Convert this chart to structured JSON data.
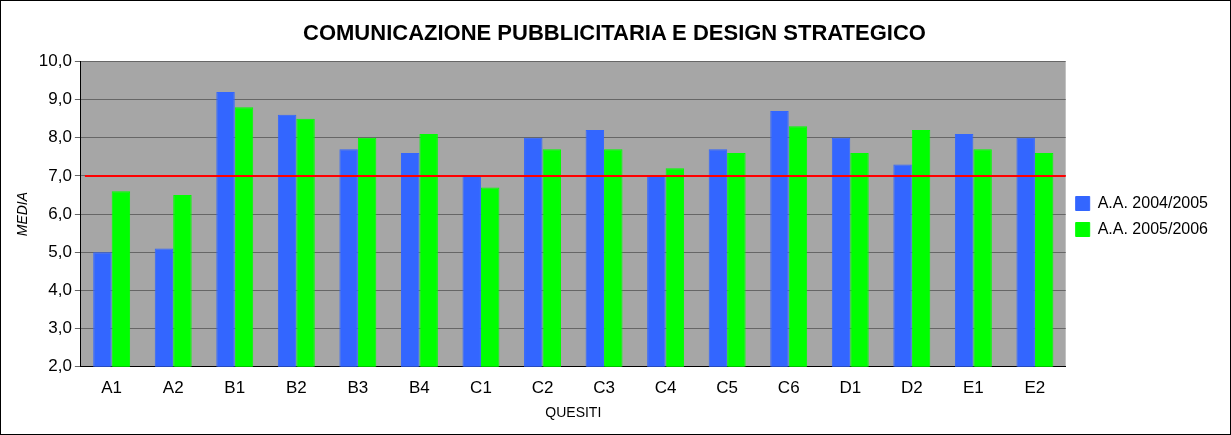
{
  "chart_data": {
    "type": "bar",
    "title": "COMUNICAZIONE PUBBLICITARIA E DESIGN STRATEGICO",
    "xlabel": "QUESITI",
    "ylabel": "MEDIA",
    "categories": [
      "A1",
      "A2",
      "B1",
      "B2",
      "B3",
      "B4",
      "C1",
      "C2",
      "C3",
      "C4",
      "C5",
      "C6",
      "D1",
      "D2",
      "E1",
      "E2"
    ],
    "series": [
      {
        "name": "A.A. 2004/2005",
        "color": "#3366ff",
        "values": [
          5.0,
          5.1,
          9.2,
          8.6,
          7.7,
          7.6,
          7.0,
          8.0,
          8.2,
          7.0,
          7.7,
          8.7,
          8.0,
          7.3,
          8.1,
          8.0
        ]
      },
      {
        "name": "A.A. 2005/2006",
        "color": "#00ff00",
        "values": [
          6.6,
          6.5,
          8.8,
          8.5,
          8.0,
          8.1,
          6.7,
          7.7,
          7.7,
          7.2,
          7.6,
          8.3,
          7.6,
          8.2,
          7.7,
          7.6
        ]
      }
    ],
    "ylim": [
      2,
      10
    ],
    "yticks": [
      {
        "value": 2,
        "label": "2,0"
      },
      {
        "value": 3,
        "label": "3,0"
      },
      {
        "value": 4,
        "label": "4,0"
      },
      {
        "value": 5,
        "label": "5,0"
      },
      {
        "value": 6,
        "label": "6,0"
      },
      {
        "value": 7,
        "label": "7,0"
      },
      {
        "value": 8,
        "label": "8,0"
      },
      {
        "value": 9,
        "label": "9,0"
      },
      {
        "value": 10,
        "label": "10,0"
      }
    ],
    "ref_lines": [
      {
        "axis": "y",
        "value": 7.0,
        "color": "#ff0000"
      }
    ],
    "grid": "y",
    "legend": "right"
  }
}
